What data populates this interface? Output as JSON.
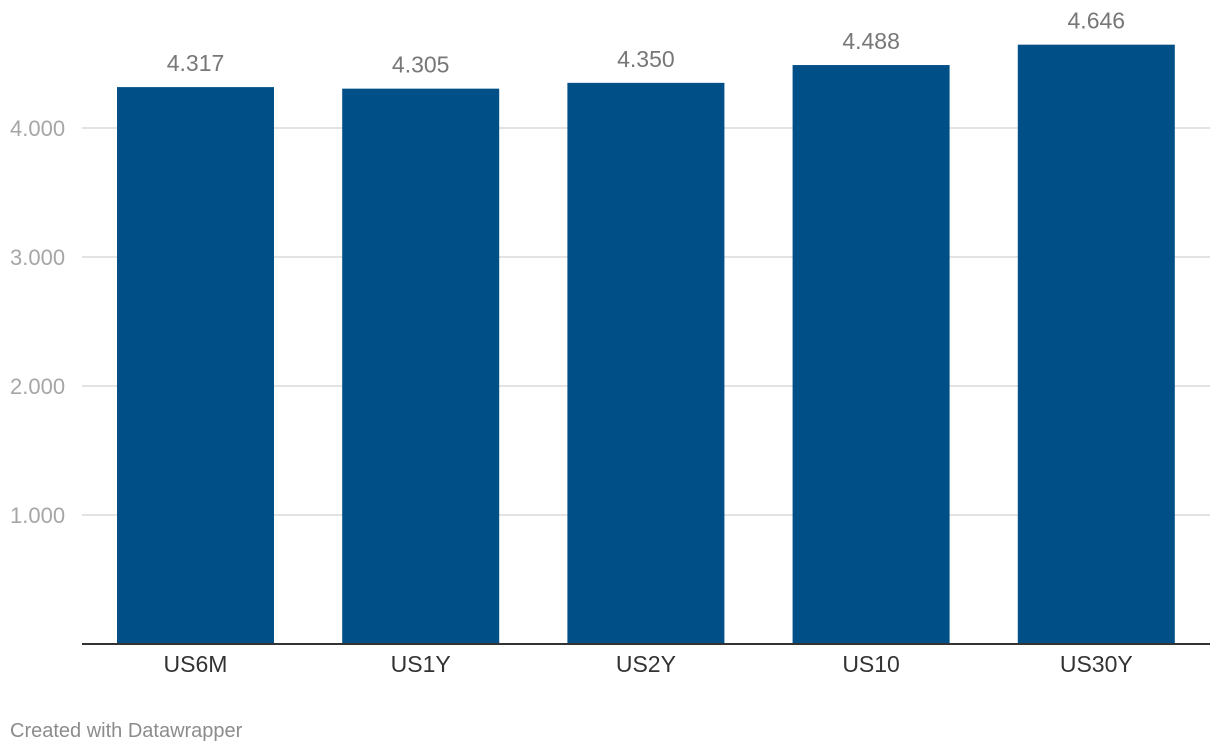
{
  "chart_data": {
    "type": "bar",
    "categories": [
      "US6M",
      "US1Y",
      "US2Y",
      "US10",
      "US30Y"
    ],
    "values": [
      4.317,
      4.305,
      4.35,
      4.488,
      4.646
    ],
    "value_labels": [
      "4.317",
      "4.305",
      "4.350",
      "4.488",
      "4.646"
    ],
    "yticks": [
      1.0,
      2.0,
      3.0,
      4.0
    ],
    "ytick_labels": [
      "1.000",
      "2.000",
      "3.000",
      "4.000"
    ],
    "ylim": [
      0,
      4.646
    ],
    "grid": true,
    "bar_color": "#004f87",
    "title": "",
    "xlabel": "",
    "ylabel": ""
  },
  "footer": {
    "credit": "Created with Datawrapper"
  }
}
